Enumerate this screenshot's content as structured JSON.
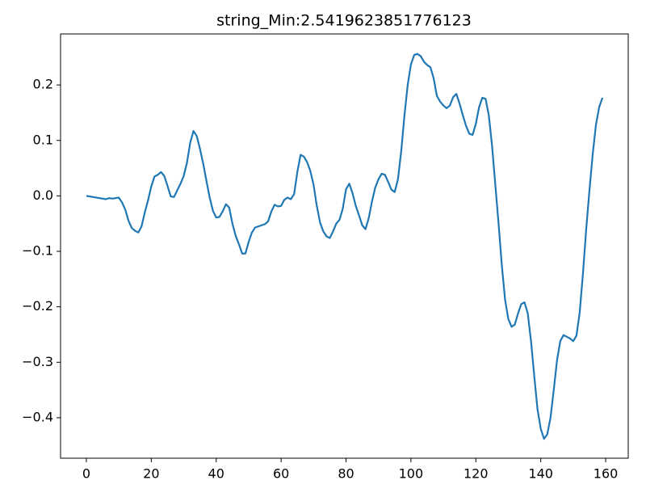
{
  "chart_data": {
    "type": "line",
    "title": "string_Min:2.5419623851776123",
    "x": [
      0,
      1,
      2,
      3,
      4,
      5,
      6,
      7,
      8,
      9,
      10,
      11,
      12,
      13,
      14,
      15,
      16,
      17,
      18,
      19,
      20,
      21,
      22,
      23,
      24,
      25,
      26,
      27,
      28,
      29,
      30,
      31,
      32,
      33,
      34,
      35,
      36,
      37,
      38,
      39,
      40,
      41,
      42,
      43,
      44,
      45,
      46,
      47,
      48,
      49,
      50,
      51,
      52,
      53,
      54,
      55,
      56,
      57,
      58,
      59,
      60,
      61,
      62,
      63,
      64,
      65,
      66,
      67,
      68,
      69,
      70,
      71,
      72,
      73,
      74,
      75,
      76,
      77,
      78,
      79,
      80,
      81,
      82,
      83,
      84,
      85,
      86,
      87,
      88,
      89,
      90,
      91,
      92,
      93,
      94,
      95,
      96,
      97,
      98,
      99,
      100,
      101,
      102,
      103,
      104,
      105,
      106,
      107,
      108,
      109,
      110,
      111,
      112,
      113,
      114,
      115,
      116,
      117,
      118,
      119,
      120,
      121,
      122,
      123,
      124,
      125,
      126,
      127,
      128,
      129,
      130,
      131,
      132,
      133,
      134,
      135,
      136,
      137,
      138,
      139,
      140,
      141,
      142,
      143,
      144,
      145,
      146,
      147,
      148,
      149,
      150,
      151,
      152,
      153,
      154,
      155,
      156,
      157,
      158,
      159
    ],
    "series": [
      {
        "color": "#1f77b4",
        "values": [
          0.0,
          -0.001,
          -0.002,
          -0.003,
          -0.004,
          -0.005,
          -0.006,
          -0.004,
          -0.005,
          -0.004,
          -0.003,
          -0.012,
          -0.025,
          -0.045,
          -0.058,
          -0.063,
          -0.066,
          -0.055,
          -0.03,
          -0.008,
          0.017,
          0.035,
          0.038,
          0.043,
          0.036,
          0.018,
          -0.001,
          -0.002,
          0.01,
          0.022,
          0.036,
          0.06,
          0.096,
          0.117,
          0.108,
          0.085,
          0.058,
          0.027,
          -0.003,
          -0.027,
          -0.039,
          -0.038,
          -0.028,
          -0.015,
          -0.021,
          -0.05,
          -0.072,
          -0.087,
          -0.104,
          -0.104,
          -0.083,
          -0.066,
          -0.057,
          -0.055,
          -0.053,
          -0.051,
          -0.046,
          -0.028,
          -0.016,
          -0.019,
          -0.018,
          -0.007,
          -0.003,
          -0.006,
          0.003,
          0.043,
          0.074,
          0.071,
          0.061,
          0.045,
          0.02,
          -0.018,
          -0.048,
          -0.064,
          -0.073,
          -0.076,
          -0.064,
          -0.05,
          -0.043,
          -0.023,
          0.012,
          0.022,
          0.005,
          -0.018,
          -0.035,
          -0.053,
          -0.06,
          -0.04,
          -0.01,
          0.015,
          0.03,
          0.04,
          0.038,
          0.025,
          0.011,
          0.007,
          0.03,
          0.08,
          0.145,
          0.2,
          0.237,
          0.254,
          0.256,
          0.252,
          0.242,
          0.236,
          0.232,
          0.212,
          0.18,
          0.17,
          0.163,
          0.158,
          0.163,
          0.178,
          0.184,
          0.166,
          0.145,
          0.126,
          0.112,
          0.11,
          0.13,
          0.16,
          0.177,
          0.175,
          0.145,
          0.09,
          0.02,
          -0.05,
          -0.125,
          -0.187,
          -0.222,
          -0.236,
          -0.232,
          -0.212,
          -0.195,
          -0.192,
          -0.212,
          -0.262,
          -0.325,
          -0.385,
          -0.42,
          -0.438,
          -0.43,
          -0.4,
          -0.35,
          -0.297,
          -0.262,
          -0.251,
          -0.254,
          -0.257,
          -0.262,
          -0.252,
          -0.21,
          -0.14,
          -0.06,
          0.01,
          0.075,
          0.128,
          0.16,
          0.177
        ]
      }
    ],
    "xlim": [
      -7.95,
      166.95
    ],
    "xticks": [
      0,
      20,
      40,
      60,
      80,
      100,
      120,
      140,
      160
    ],
    "ylim": [
      -0.473,
      0.292
    ],
    "yticks": [
      {
        "value": -0.4,
        "label": "−0.4"
      },
      {
        "value": -0.3,
        "label": "−0.3"
      },
      {
        "value": -0.2,
        "label": "−0.2"
      },
      {
        "value": -0.1,
        "label": "−0.1"
      },
      {
        "value": 0,
        "label": "0.0"
      },
      0.1,
      0.2
    ],
    "grid": false
  }
}
